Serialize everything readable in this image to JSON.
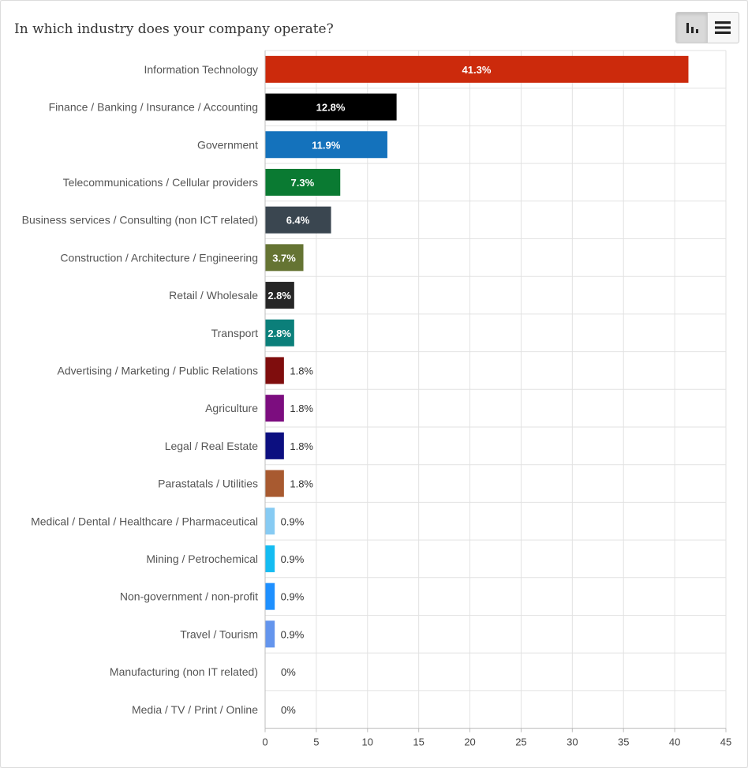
{
  "header": {
    "title": "In which industry does your company operate?"
  },
  "toolbar": {
    "chart_view_icon": "bar-chart-icon",
    "list_view_icon": "list-icon",
    "active_view": "chart"
  },
  "chart_data": {
    "type": "bar",
    "orientation": "horizontal",
    "title": "In which industry does your company operate?",
    "categories": [
      "Information Technology",
      "Finance / Banking / Insurance / Accounting",
      "Government",
      "Telecommunications / Cellular providers",
      "Business services / Consulting (non ICT related)",
      "Construction / Architecture / Engineering",
      "Retail / Wholesale",
      "Transport",
      "Advertising / Marketing / Public Relations",
      "Agriculture",
      "Legal / Real Estate",
      "Parastatals / Utilities",
      "Medical / Dental / Healthcare / Pharmaceutical",
      "Mining / Petrochemical",
      "Non-government / non-profit",
      "Travel / Tourism",
      "Manufacturing (non IT related)",
      "Media / TV / Print / Online"
    ],
    "values": [
      41.3,
      12.8,
      11.9,
      7.3,
      6.4,
      3.7,
      2.8,
      2.8,
      1.8,
      1.8,
      1.8,
      1.8,
      0.9,
      0.9,
      0.9,
      0.9,
      0,
      0
    ],
    "value_labels": [
      "41.3%",
      "12.8%",
      "11.9%",
      "7.3%",
      "6.4%",
      "3.7%",
      "2.8%",
      "2.8%",
      "1.8%",
      "1.8%",
      "1.8%",
      "1.8%",
      "0.9%",
      "0.9%",
      "0.9%",
      "0.9%",
      "0%",
      "0%"
    ],
    "colors": [
      "#cc2a0c",
      "#000000",
      "#1472bc",
      "#0a7a32",
      "#3a4650",
      "#657433",
      "#262626",
      "#0b7f7a",
      "#7f0d0d",
      "#7c0d7f",
      "#0c0f80",
      "#a85a30",
      "#87cbf3",
      "#14bcf2",
      "#1e90ff",
      "#6495ed",
      "#cccccc",
      "#cccccc"
    ],
    "xlim": [
      0,
      45
    ],
    "xticks": [
      0,
      5,
      10,
      15,
      20,
      25,
      30,
      35,
      40,
      45
    ],
    "grid": true
  }
}
